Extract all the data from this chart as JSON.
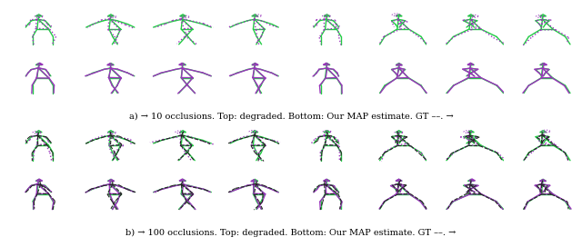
{
  "caption_a": "a) → 10 occlusions. Top: degraded. Bottom: Our MAP estimate. GT ––. →",
  "caption_b": "b) → 100 occlusions. Top: degraded. Bottom: Our MAP estimate. GT ––. →",
  "n_cols": 8,
  "green_color": "#22cc44",
  "purple_color": "#9933bb",
  "black_color": "#222222",
  "bg_color": "#ffffff",
  "caption_fontsize": 7.0
}
